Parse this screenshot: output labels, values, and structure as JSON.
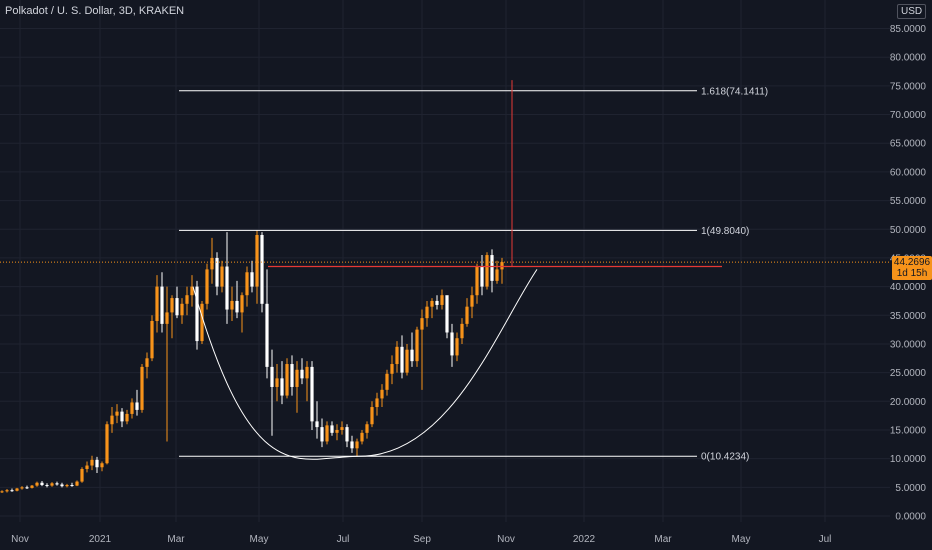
{
  "header": {
    "title": "Polkadot / U. S. Dollar, 3D, KRAKEN"
  },
  "currency_label": "USD",
  "last_price": {
    "value": "44.2696",
    "countdown": "1d 15h"
  },
  "colors": {
    "background": "#131722",
    "grid": "#1f2330",
    "up_candle": "#f7931a",
    "down_candle": "#ffffff",
    "fib_lines": "#ffffff",
    "breakout_line": "#e53935",
    "price_line": "#f7931a",
    "axis_text": "#b2b5be"
  },
  "chart_data": {
    "type": "candlestick",
    "title": "Polkadot / U. S. Dollar, 3D, KRAKEN",
    "y_axis_unit": "USD",
    "ylim": [
      -2,
      88
    ],
    "y_ticks": [
      "85.0000",
      "80.0000",
      "75.0000",
      "70.0000",
      "65.0000",
      "60.0000",
      "55.0000",
      "50.0000",
      "45.0000",
      "40.0000",
      "35.0000",
      "30.0000",
      "25.0000",
      "20.0000",
      "15.0000",
      "10.0000",
      "5.0000",
      "0.0000"
    ],
    "x_ticks": [
      "Nov",
      "2021",
      "Mar",
      "May",
      "Jul",
      "Sep",
      "Nov",
      "2022",
      "Mar",
      "May",
      "Jul"
    ],
    "grid": true,
    "last_price": 44.2696,
    "fibonacci": [
      {
        "label": "1.618(74.1411)",
        "level": 74.1411
      },
      {
        "label": "1(49.8040)",
        "level": 49.804
      },
      {
        "label": "0(10.4234)",
        "level": 10.4234
      }
    ],
    "drawings": {
      "cup_curve": "cup pattern from Feb 2021 high through Jul 2021 low to Nov 2021",
      "resistance_level": 43.5,
      "breakout_target": 76
    },
    "candles": [
      [
        4.2,
        4.5,
        4.0,
        4.3
      ],
      [
        4.3,
        4.7,
        4.1,
        4.5
      ],
      [
        4.5,
        4.8,
        4.2,
        4.4
      ],
      [
        4.4,
        4.9,
        4.3,
        4.8
      ],
      [
        4.8,
        5.2,
        4.6,
        5.0
      ],
      [
        5.0,
        5.3,
        4.7,
        4.9
      ],
      [
        4.9,
        5.4,
        4.8,
        5.3
      ],
      [
        5.3,
        6.0,
        5.1,
        5.8
      ],
      [
        5.8,
        6.1,
        5.2,
        5.4
      ],
      [
        5.4,
        5.7,
        5.0,
        5.3
      ],
      [
        5.3,
        5.9,
        5.1,
        5.7
      ],
      [
        5.7,
        6.0,
        5.3,
        5.5
      ],
      [
        5.5,
        5.8,
        5.0,
        5.2
      ],
      [
        5.2,
        5.6,
        5.0,
        5.4
      ],
      [
        5.4,
        5.8,
        5.1,
        5.3
      ],
      [
        5.3,
        6.2,
        5.2,
        6.0
      ],
      [
        6.0,
        8.5,
        5.8,
        8.2
      ],
      [
        8.2,
        9.5,
        7.6,
        8.8
      ],
      [
        8.8,
        10.5,
        8.0,
        9.8
      ],
      [
        9.8,
        10.3,
        7.5,
        8.5
      ],
      [
        8.5,
        9.5,
        7.8,
        9.2
      ],
      [
        9.2,
        16.5,
        9.0,
        16.0
      ],
      [
        16.0,
        19.0,
        14.5,
        17.5
      ],
      [
        17.5,
        19.5,
        16.2,
        18.2
      ],
      [
        18.2,
        18.8,
        15.5,
        16.5
      ],
      [
        16.5,
        18.5,
        16.0,
        17.8
      ],
      [
        17.8,
        20.5,
        17.0,
        19.8
      ],
      [
        19.8,
        22.0,
        17.5,
        18.5
      ],
      [
        18.5,
        26.5,
        18.0,
        26.0
      ],
      [
        26.0,
        28.5,
        24.0,
        27.5
      ],
      [
        27.5,
        35.0,
        27.0,
        34.0
      ],
      [
        34.0,
        42.0,
        32.0,
        40.0
      ],
      [
        40.0,
        42.5,
        32.0,
        33.5
      ],
      [
        33.5,
        40.0,
        13.0,
        35.5
      ],
      [
        35.5,
        38.5,
        31.0,
        38.0
      ],
      [
        38.0,
        40.0,
        34.5,
        35.0
      ],
      [
        35.0,
        38.0,
        33.5,
        37.0
      ],
      [
        37.0,
        40.0,
        35.0,
        38.5
      ],
      [
        38.5,
        42.0,
        36.5,
        40.0
      ],
      [
        40.0,
        41.0,
        29.0,
        30.5
      ],
      [
        30.5,
        37.5,
        30.0,
        37.0
      ],
      [
        37.0,
        44.0,
        36.0,
        43.0
      ],
      [
        43.0,
        48.5,
        40.5,
        45.0
      ],
      [
        45.0,
        46.0,
        38.5,
        40.0
      ],
      [
        40.0,
        44.5,
        39.0,
        43.5
      ],
      [
        43.5,
        49.5,
        33.5,
        36.0
      ],
      [
        36.0,
        40.0,
        34.0,
        37.5
      ],
      [
        37.5,
        41.0,
        34.5,
        35.5
      ],
      [
        35.5,
        39.0,
        32.0,
        38.5
      ],
      [
        38.5,
        43.5,
        36.5,
        42.5
      ],
      [
        42.5,
        44.5,
        39.0,
        40.0
      ],
      [
        40.0,
        49.8,
        37.0,
        49.0
      ],
      [
        49.0,
        49.5,
        35.5,
        37.0
      ],
      [
        37.0,
        43.0,
        24.0,
        26.0
      ],
      [
        26.0,
        29.0,
        14.0,
        22.5
      ],
      [
        22.5,
        26.5,
        20.0,
        24.0
      ],
      [
        24.0,
        27.0,
        19.5,
        21.0
      ],
      [
        21.0,
        27.5,
        20.5,
        26.5
      ],
      [
        26.5,
        28.0,
        21.0,
        22.5
      ],
      [
        22.5,
        27.0,
        18.0,
        25.5
      ],
      [
        25.5,
        27.5,
        23.0,
        24.0
      ],
      [
        24.0,
        27.0,
        20.0,
        26.0
      ],
      [
        26.0,
        27.0,
        15.0,
        16.5
      ],
      [
        16.5,
        20.0,
        13.5,
        15.5
      ],
      [
        15.5,
        17.0,
        12.0,
        13.0
      ],
      [
        13.0,
        16.5,
        12.5,
        15.8
      ],
      [
        15.8,
        16.5,
        14.0,
        14.5
      ],
      [
        14.5,
        16.0,
        13.2,
        15.0
      ],
      [
        15.0,
        16.5,
        14.2,
        15.5
      ],
      [
        15.5,
        16.0,
        12.0,
        13.0
      ],
      [
        13.0,
        14.0,
        11.0,
        11.8
      ],
      [
        11.8,
        13.5,
        10.4,
        13.0
      ],
      [
        13.0,
        15.0,
        12.5,
        14.5
      ],
      [
        14.5,
        16.5,
        13.5,
        16.0
      ],
      [
        16.0,
        20.0,
        15.5,
        19.0
      ],
      [
        19.0,
        21.5,
        17.5,
        20.5
      ],
      [
        20.5,
        23.0,
        19.0,
        22.0
      ],
      [
        22.0,
        25.5,
        21.0,
        24.8
      ],
      [
        24.8,
        28.0,
        23.0,
        26.5
      ],
      [
        26.5,
        30.5,
        25.0,
        29.5
      ],
      [
        29.5,
        31.5,
        24.0,
        25.0
      ],
      [
        25.0,
        30.0,
        24.5,
        29.0
      ],
      [
        29.0,
        32.0,
        26.0,
        27.0
      ],
      [
        27.0,
        33.0,
        26.0,
        32.5
      ],
      [
        32.5,
        36.0,
        22.0,
        34.5
      ],
      [
        34.5,
        37.5,
        33.0,
        36.5
      ],
      [
        36.5,
        38.0,
        34.5,
        37.5
      ],
      [
        37.5,
        38.5,
        36.0,
        36.8
      ],
      [
        36.8,
        39.5,
        36.0,
        38.5
      ],
      [
        38.5,
        38.0,
        31.0,
        32.0
      ],
      [
        32.0,
        33.5,
        26.0,
        28.0
      ],
      [
        28.0,
        32.0,
        27.0,
        31.0
      ],
      [
        31.0,
        34.5,
        30.0,
        33.5
      ],
      [
        33.5,
        38.0,
        33.0,
        36.5
      ],
      [
        36.5,
        40.0,
        34.5,
        38.5
      ],
      [
        38.5,
        44.0,
        37.0,
        43.5
      ],
      [
        43.5,
        45.5,
        38.5,
        40.0
      ],
      [
        40.0,
        46.0,
        39.5,
        45.5
      ],
      [
        45.5,
        46.5,
        39.0,
        41.0
      ],
      [
        41.0,
        44.5,
        40.5,
        43.0
      ],
      [
        43.0,
        45.0,
        40.5,
        44.2696
      ]
    ]
  }
}
